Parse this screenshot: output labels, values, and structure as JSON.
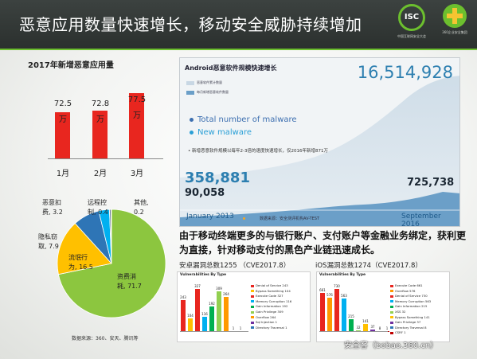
{
  "header": {
    "title": "恶意应用数量快速增长，移动安全威胁持续增加",
    "isc_logo_text": "ISC",
    "isc_year": "2017",
    "isc_sub": "中国互联网安全大会",
    "partner_sub": "360企业安全集团"
  },
  "bar_chart": {
    "title": "2017年新增恶意应用量",
    "bars": [
      {
        "label": "1月",
        "value_line1": "72.5",
        "value_line2": "万",
        "value": 72.5
      },
      {
        "label": "2月",
        "value_line1": "72.8",
        "value_line2": "万",
        "value": 72.8
      },
      {
        "label": "3月",
        "value_line1": "77.5",
        "value_line2": "万",
        "value": 77.5
      }
    ],
    "colors": {
      "bar": "#e8261f"
    }
  },
  "malware_panel": {
    "title": "Android恶意软件规模快速增长",
    "total_value": "16,514,928",
    "legend_total": "恶意软件累计数量",
    "legend_new": "每月新增恶意软件数量",
    "label_total": "Total number of malware",
    "label_new": "New malware",
    "note": "• 新增恶意软件规模以每年2-3倍的速度快速增长，仅2016年新增871万",
    "start_total": "358,881",
    "start_new": "90,058",
    "end_new": "725,738",
    "start_date": "January 2013",
    "end_date": "September 2016",
    "source": "数据来源：安全测评机构AV-TEST",
    "colors": {
      "total": "#3d6fb0",
      "new": "#2a9fd6"
    }
  },
  "pie_chart": {
    "source": "数据来源：360、安天、腾讯等",
    "slices": [
      {
        "label_line1": "资费消",
        "label_line2": "耗, 71.7",
        "value": 71.7,
        "color": "#8cc63f"
      },
      {
        "label_line1": "流氓行",
        "label_line2": "为, 16.5",
        "value": 16.5,
        "color": "#ffc000"
      },
      {
        "label_line1": "隐私窃",
        "label_line2": "取, 7.9",
        "value": 7.9,
        "color": "#2e75b6"
      },
      {
        "label_line1": "恶意扣",
        "label_line2": "费, 3.2",
        "value": 3.2,
        "color": "#00b0f0"
      },
      {
        "label_line1": "远程控",
        "label_line2": "制, 0.4",
        "value": 0.4,
        "color": "#1f3864"
      },
      {
        "label_line1": "其他,",
        "label_line2": "0.2",
        "value": 0.2,
        "color": "#7030a0"
      }
    ]
  },
  "headline": "由于移动终端更多的与银行账户、支付账户等金融业务绑定，获利更为直接，针对移动支付的黑色产业链迅速成长。",
  "android_vulns": {
    "title": "安卓漏洞总数1255 （CVE2017.8）",
    "subtitle": "Vulnerabilities By Type",
    "items": [
      {
        "name": "Denial of Service 243",
        "value": 243,
        "color": "#e8261f"
      },
      {
        "name": "Bypass Something 104",
        "value": 104,
        "color": "#ffc000"
      },
      {
        "name": "Execute Code 327",
        "value": 327,
        "color": "#e8261f"
      },
      {
        "name": "Memory Corruption 116",
        "value": 116,
        "color": "#00b0f0"
      },
      {
        "name": "Gain Information 192",
        "value": 192,
        "color": "#00b050"
      },
      {
        "name": "Gain Privilege 309",
        "value": 309,
        "color": "#92d050"
      },
      {
        "name": "Overflow 264",
        "value": 264,
        "color": "#ff9900"
      },
      {
        "name": "Sql Injection 1",
        "value": 1,
        "color": "#7030a0"
      },
      {
        "name": "Directory Traversal 1",
        "value": 1,
        "color": "#2e75b6"
      }
    ]
  },
  "ios_vulns": {
    "title": "iOS漏洞总数1274（CVE2017.8）",
    "subtitle": "Vulnerabilities By Type",
    "items": [
      {
        "name": "Execute Code 661",
        "value": 661,
        "color": "#e8261f"
      },
      {
        "name": "Overflow 576",
        "value": 576,
        "color": "#ff9900"
      },
      {
        "name": "Denial of Service 730",
        "value": 730,
        "color": "#e8261f"
      },
      {
        "name": "Memory Corruption 563",
        "value": 563,
        "color": "#00b0f0"
      },
      {
        "name": "Gain Information 215",
        "value": 215,
        "color": "#00b050"
      },
      {
        "name": "XSS 32",
        "value": 32,
        "color": "#92d050"
      },
      {
        "name": "Bypass Something 141",
        "value": 141,
        "color": "#ffc000"
      },
      {
        "name": "Gain Privilege 37",
        "value": 37,
        "color": "#7030a0"
      },
      {
        "name": "Directory Traversal 8",
        "value": 8,
        "color": "#2e75b6"
      },
      {
        "name": "CSRF 1",
        "value": 1,
        "color": "#c00000"
      }
    ]
  },
  "watermark": "安全客（bobao.360.cn）"
}
